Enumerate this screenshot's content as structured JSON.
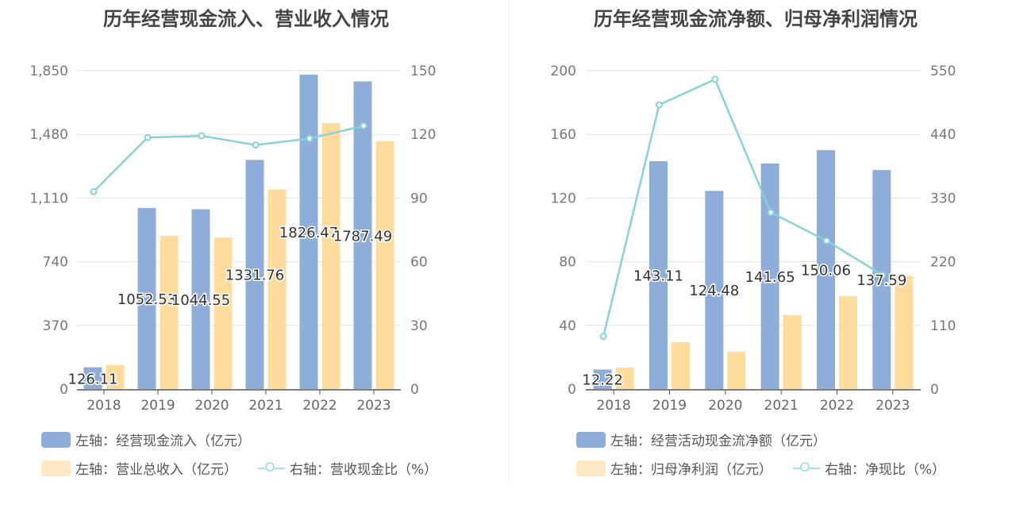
{
  "charts": [
    {
      "title": "历年经营现金流入、营业收入情况",
      "legend": [
        {
          "label": "左轴：经营现金流入（亿元）",
          "color": "#8eadd9",
          "kind": "bar"
        },
        {
          "label": "左轴：营业总收入（亿元）",
          "color": "#ffe0a6",
          "kind": "bar"
        },
        {
          "label": "右轴：营收现金比（%）",
          "color": "#87d2d6",
          "kind": "line"
        }
      ]
    },
    {
      "title": "历年经营现金流净额、归母净利润情况",
      "legend": [
        {
          "label": "左轴：经营活动现金流净额（亿元）",
          "color": "#8eadd9",
          "kind": "bar"
        },
        {
          "label": "左轴：归母净利润（亿元）",
          "color": "#ffe0a6",
          "kind": "bar"
        },
        {
          "label": "右轴：净现比（%）",
          "color": "#87d2d6",
          "kind": "line"
        }
      ]
    }
  ],
  "chart_data": [
    {
      "type": "bar",
      "title": "历年经营现金流入、营业收入情况",
      "categories": [
        "2018",
        "2019",
        "2020",
        "2021",
        "2022",
        "2023"
      ],
      "left_axis": {
        "min": 0,
        "max": 1850,
        "ticks": [
          "0",
          "370",
          "740",
          "1,110",
          "1,480",
          "1,850"
        ]
      },
      "right_axis": {
        "min": 0,
        "max": 150,
        "ticks": [
          "0",
          "30",
          "60",
          "90",
          "120",
          "150"
        ]
      },
      "grid": true,
      "legend_position": "bottom-left",
      "series": [
        {
          "name": "左轴：经营现金流入（亿元）",
          "type": "bar",
          "axis": "left",
          "color": "#8eadd9",
          "values": [
            126.11,
            1052.53,
            1044.55,
            1331.76,
            1826.47,
            1787.49
          ],
          "labels": [
            "126.11",
            "1052.53",
            "1044.55",
            "1331.76",
            "1826.47",
            "1787.49"
          ]
        },
        {
          "name": "左轴：营业总收入（亿元）",
          "type": "bar",
          "axis": "left",
          "color": "#ffdb9c",
          "values": [
            140,
            890,
            880,
            1160,
            1545,
            1440
          ]
        },
        {
          "name": "右轴：营收现金比（%）",
          "type": "line",
          "axis": "right",
          "color": "#87d2d6",
          "values": [
            93,
            118.5,
            119.3,
            115,
            118,
            124
          ]
        }
      ]
    },
    {
      "type": "bar",
      "title": "历年经营现金流净额、归母净利润情况",
      "categories": [
        "2018",
        "2019",
        "2020",
        "2021",
        "2022",
        "2023"
      ],
      "left_axis": {
        "min": 0,
        "max": 200,
        "ticks": [
          "0",
          "40",
          "80",
          "120",
          "160",
          "200"
        ]
      },
      "right_axis": {
        "min": 0,
        "max": 550,
        "ticks": [
          "0",
          "110",
          "220",
          "330",
          "440",
          "550"
        ]
      },
      "grid": true,
      "legend_position": "bottom-left",
      "series": [
        {
          "name": "左轴：经营活动现金流净额（亿元）",
          "type": "bar",
          "axis": "left",
          "color": "#8eadd9",
          "values": [
            12.22,
            143.11,
            124.48,
            141.65,
            150.06,
            137.59
          ],
          "labels": [
            "12.22",
            "143.11",
            "124.48",
            "141.65",
            "150.06",
            "137.59"
          ]
        },
        {
          "name": "左轴：归母净利润（亿元）",
          "type": "bar",
          "axis": "left",
          "color": "#ffdb9c",
          "values": [
            13.5,
            29.5,
            23.5,
            46.5,
            58.5,
            71
          ]
        },
        {
          "name": "右轴：净现比（%）",
          "type": "line",
          "axis": "right",
          "color": "#87d2d6",
          "values": [
            91,
            491,
            535,
            305,
            256,
            197
          ]
        }
      ]
    }
  ]
}
